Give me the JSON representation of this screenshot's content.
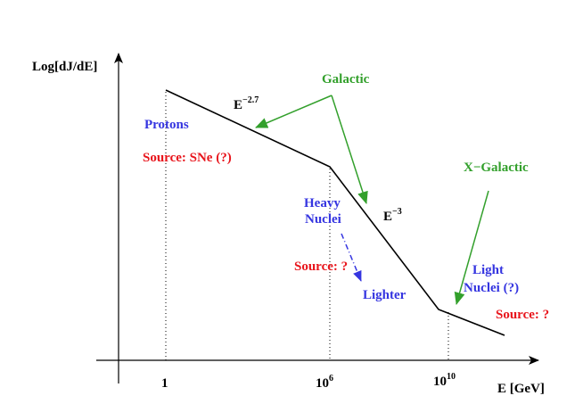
{
  "axes": {
    "y_label": "Log[dJ/dE]",
    "x_label": "E [GeV]",
    "x_ticks": [
      {
        "text": "1"
      },
      {
        "base": "10",
        "exp": "6"
      },
      {
        "base": "10",
        "exp": "10"
      }
    ]
  },
  "slopes": [
    {
      "base": "E",
      "exp": "−2.7"
    },
    {
      "base": "E",
      "exp": "−3"
    }
  ],
  "labels": {
    "galactic": "Galactic",
    "x_galactic": "X−Galactic",
    "protons": "Protons",
    "protons_source": "Source: SNe (?)",
    "heavy": [
      "Heavy",
      "Nuclei"
    ],
    "heavy_source": "Source: ?",
    "lighter": "Lighter",
    "light": [
      "Light",
      "Nuclei (?)"
    ],
    "light_source": "Source: ?"
  }
}
